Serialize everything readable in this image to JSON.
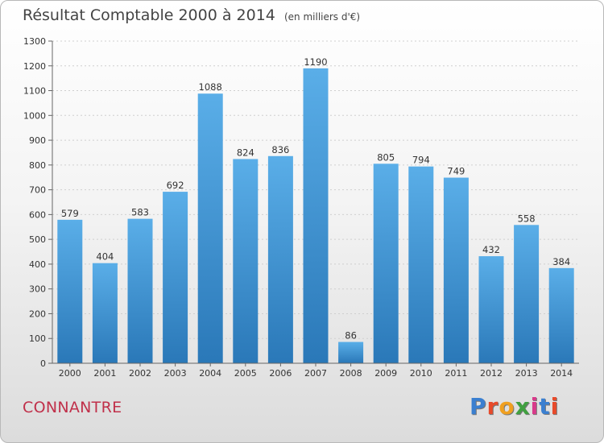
{
  "title": "Résultat Comptable 2000 à 2014",
  "subtitle": "(en milliers d'€)",
  "city": "CONNANTRE",
  "logo": "Proxiti",
  "colors": {
    "bar_light": "#5aaee8",
    "bar_dark": "#2a78b8",
    "city": "#c0304a",
    "logo": [
      "#3a7fd0",
      "#e84a2a",
      "#f0a020",
      "#40a040",
      "#d83a8a",
      "#3a7fd0",
      "#e84a2a"
    ]
  },
  "chart_data": {
    "type": "bar",
    "title": "Résultat Comptable 2000 à 2014",
    "subtitle": "(en milliers d'€)",
    "xlabel": "",
    "ylabel": "",
    "categories": [
      "2000",
      "2001",
      "2002",
      "2003",
      "2004",
      "2005",
      "2006",
      "2007",
      "2008",
      "2009",
      "2010",
      "2011",
      "2012",
      "2013",
      "2014"
    ],
    "values": [
      579,
      404,
      583,
      692,
      1088,
      824,
      836,
      1190,
      86,
      805,
      794,
      749,
      432,
      558,
      384
    ],
    "ylim": [
      0,
      1300
    ],
    "yticks": [
      0,
      100,
      200,
      300,
      400,
      500,
      600,
      700,
      800,
      900,
      1000,
      1100,
      1200,
      1300
    ],
    "grid": true,
    "legend": "none"
  }
}
